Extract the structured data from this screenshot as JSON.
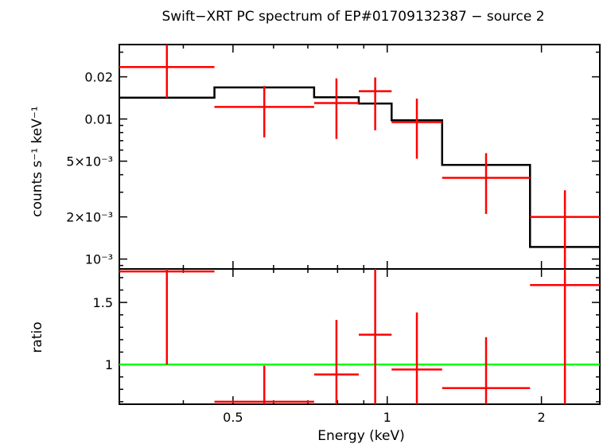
{
  "chart_data": [
    {
      "type": "line",
      "panel": "spectrum",
      "title": "Swift−XRT PC spectrum of EP#01709132387 − source 2",
      "ylabel": "counts s⁻¹ keV⁻¹",
      "xlabel": "",
      "x_scale": "log",
      "y_scale": "log",
      "xlim": [
        0.3,
        2.6
      ],
      "ylim": [
        0.00085,
        0.034
      ],
      "y_ticks": [
        {
          "value": 0.02,
          "label": "0.02"
        },
        {
          "value": 0.01,
          "label": "0.01"
        },
        {
          "value": 0.005,
          "label": "5×10⁻³"
        },
        {
          "value": 0.002,
          "label": "2×10⁻³"
        },
        {
          "value": 0.001,
          "label": "10⁻³"
        }
      ],
      "data_points": [
        {
          "xlo": 0.3,
          "xhi": 0.46,
          "y": 0.0235,
          "ylo": 0.0142,
          "yhi": 0.034
        },
        {
          "xlo": 0.46,
          "xhi": 0.72,
          "y": 0.0122,
          "ylo": 0.0074,
          "yhi": 0.0172
        },
        {
          "xlo": 0.72,
          "xhi": 0.88,
          "y": 0.013,
          "ylo": 0.0072,
          "yhi": 0.0195
        },
        {
          "xlo": 0.88,
          "xhi": 1.02,
          "y": 0.0158,
          "ylo": 0.0083,
          "yhi": 0.0198
        },
        {
          "xlo": 1.02,
          "xhi": 1.28,
          "y": 0.0095,
          "ylo": 0.0052,
          "yhi": 0.014
        },
        {
          "xlo": 1.28,
          "xhi": 1.9,
          "y": 0.0038,
          "ylo": 0.0021,
          "yhi": 0.0057
        },
        {
          "xlo": 1.9,
          "xhi": 2.6,
          "y": 0.002,
          "ylo": 0.00085,
          "yhi": 0.0031
        }
      ],
      "model_steps": [
        {
          "xlo": 0.3,
          "xhi": 0.46,
          "y": 0.0142
        },
        {
          "xlo": 0.46,
          "xhi": 0.72,
          "y": 0.0168
        },
        {
          "xlo": 0.72,
          "xhi": 0.88,
          "y": 0.0143
        },
        {
          "xlo": 0.88,
          "xhi": 1.02,
          "y": 0.0129
        },
        {
          "xlo": 1.02,
          "xhi": 1.28,
          "y": 0.0098
        },
        {
          "xlo": 1.28,
          "xhi": 1.9,
          "y": 0.0047
        },
        {
          "xlo": 1.9,
          "xhi": 2.6,
          "y": 0.00122
        }
      ]
    },
    {
      "type": "scatter",
      "panel": "ratio",
      "title": "",
      "ylabel": "ratio",
      "xlabel": "Energy (keV)",
      "x_scale": "log",
      "y_scale": "linear",
      "xlim": [
        0.3,
        2.6
      ],
      "ylim": [
        0.68,
        1.77
      ],
      "x_ticks": [
        {
          "value": 0.5,
          "label": "0.5"
        },
        {
          "value": 1,
          "label": "1"
        },
        {
          "value": 2,
          "label": "2"
        }
      ],
      "y_ticks": [
        {
          "value": 1.5,
          "label": "1.5"
        },
        {
          "value": 1,
          "label": "1"
        }
      ],
      "reference_line": 1,
      "data_points": [
        {
          "xlo": 0.3,
          "xhi": 0.46,
          "y": 1.75,
          "ylo": 1.0,
          "yhi": 1.77
        },
        {
          "xlo": 0.46,
          "xhi": 0.72,
          "y": 0.7,
          "ylo": 0.68,
          "yhi": 0.99
        },
        {
          "xlo": 0.72,
          "xhi": 0.88,
          "y": 0.92,
          "ylo": 0.68,
          "yhi": 1.36
        },
        {
          "xlo": 0.88,
          "xhi": 1.02,
          "y": 1.24,
          "ylo": 0.68,
          "yhi": 1.77
        },
        {
          "xlo": 1.02,
          "xhi": 1.28,
          "y": 0.96,
          "ylo": 0.68,
          "yhi": 1.42
        },
        {
          "xlo": 1.28,
          "xhi": 1.9,
          "y": 0.81,
          "ylo": 0.68,
          "yhi": 1.22
        },
        {
          "xlo": 1.9,
          "xhi": 2.6,
          "y": 1.64,
          "ylo": 0.68,
          "yhi": 1.77
        }
      ]
    }
  ],
  "colors": {
    "data": "#ff0000",
    "model": "#000000",
    "reference": "#00ff00",
    "frame": "#000000"
  }
}
